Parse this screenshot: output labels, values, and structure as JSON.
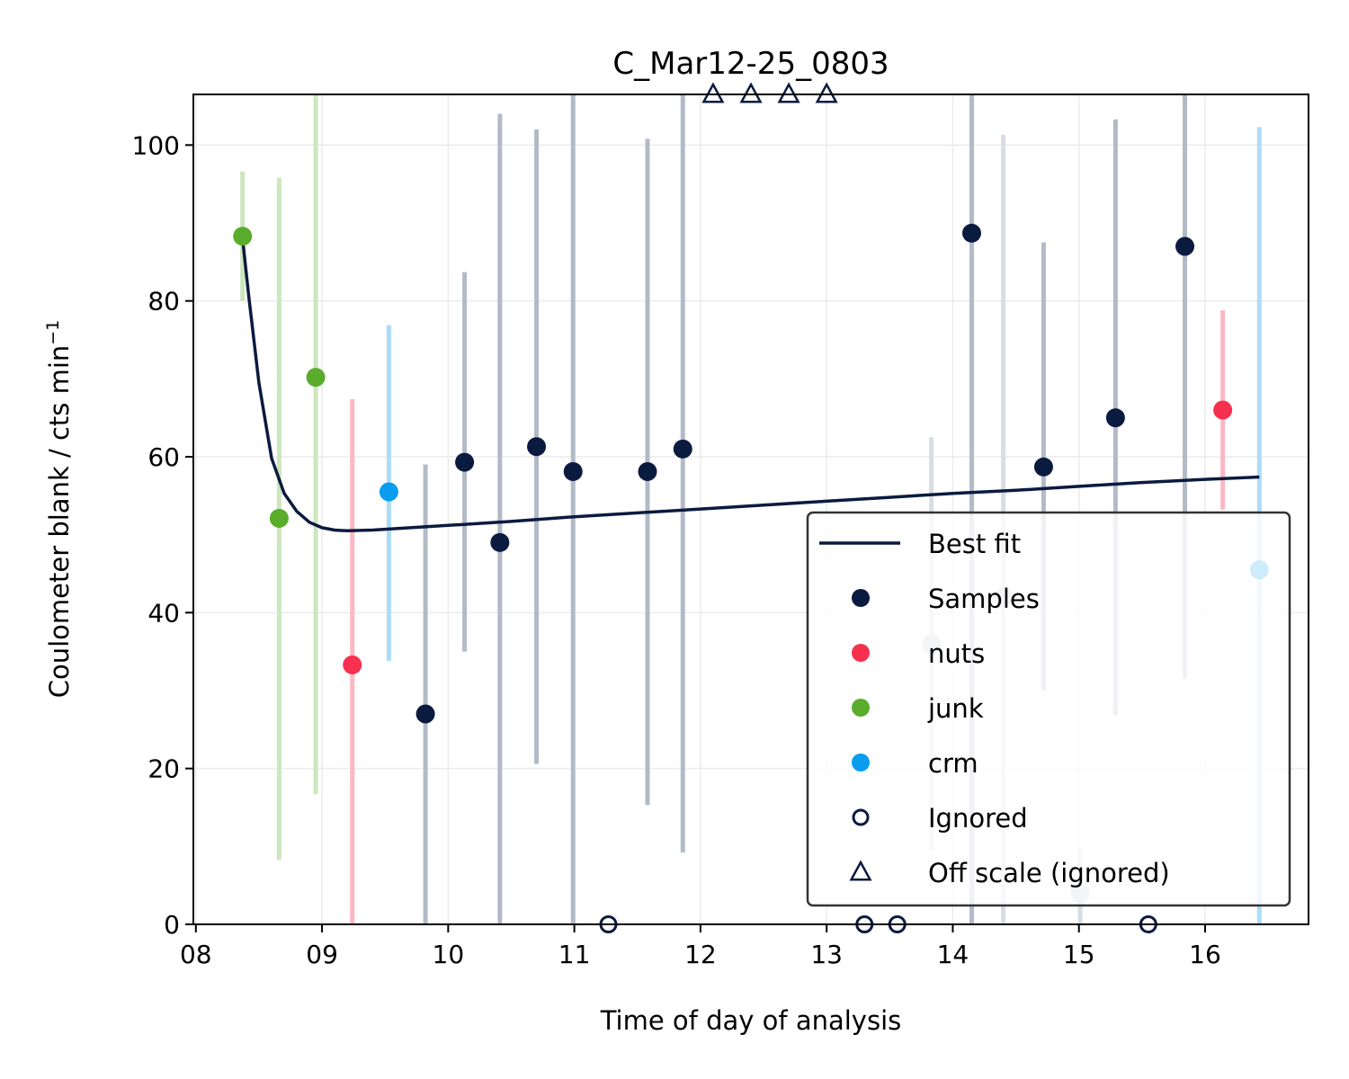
{
  "chart_data": {
    "type": "scatter",
    "title": "C_Mar12-25_0803",
    "xlabel": "Time of day of analysis",
    "ylabel": "Coulometer blank / cts min",
    "ylabel_superscript": "−1",
    "xlim": [
      7.98,
      16.82
    ],
    "ylim": [
      0,
      106.5
    ],
    "xticks": [
      8,
      9,
      10,
      11,
      12,
      13,
      14,
      15,
      16
    ],
    "xtick_labels": [
      "08",
      "09",
      "10",
      "11",
      "12",
      "13",
      "14",
      "15",
      "16"
    ],
    "yticks": [
      0,
      20,
      40,
      60,
      80,
      100
    ],
    "ytick_labels": [
      "0",
      "20",
      "40",
      "60",
      "80",
      "100"
    ],
    "grid": true,
    "legend_position": "lower-right",
    "best_fit": {
      "name": "Best fit",
      "color": "#0b1a3f",
      "x": [
        8.37,
        8.42,
        8.5,
        8.6,
        8.7,
        8.8,
        8.9,
        9.0,
        9.1,
        9.2,
        9.4,
        9.7,
        10.0,
        10.5,
        11.0,
        11.5,
        12.0,
        12.5,
        13.0,
        13.5,
        14.0,
        14.5,
        15.0,
        15.5,
        16.0,
        16.43
      ],
      "y": [
        88.0,
        80.5,
        69.5,
        59.8,
        55.3,
        53.0,
        51.6,
        50.9,
        50.6,
        50.5,
        50.6,
        50.9,
        51.2,
        51.7,
        52.3,
        52.8,
        53.3,
        53.8,
        54.3,
        54.8,
        55.3,
        55.7,
        56.2,
        56.7,
        57.1,
        57.4
      ]
    },
    "series": [
      {
        "name": "Samples",
        "color": "#0b1a3f",
        "err_color": "#b3bac7",
        "points": [
          {
            "x": 9.82,
            "y": 27.0,
            "lo": 0,
            "hi": 59.0
          },
          {
            "x": 10.13,
            "y": 59.3,
            "lo": 35.0,
            "hi": 83.7
          },
          {
            "x": 10.41,
            "y": 49.0,
            "lo": 0,
            "hi": 104.0
          },
          {
            "x": 10.7,
            "y": 61.3,
            "lo": 20.6,
            "hi": 102.0
          },
          {
            "x": 10.99,
            "y": 58.1,
            "lo": 0,
            "hi": 106.5
          },
          {
            "x": 11.58,
            "y": 58.1,
            "lo": 15.3,
            "hi": 100.8
          },
          {
            "x": 11.86,
            "y": 61.0,
            "lo": 9.2,
            "hi": 106.5
          },
          {
            "x": 14.15,
            "y": 88.7,
            "lo": 0,
            "hi": 106.5
          },
          {
            "x": 14.72,
            "y": 58.7,
            "lo": 30.0,
            "hi": 87.5
          },
          {
            "x": 15.29,
            "y": 65.0,
            "lo": 26.8,
            "hi": 103.3
          },
          {
            "x": 15.84,
            "y": 87.0,
            "lo": 31.5,
            "hi": 106.5
          }
        ]
      },
      {
        "name": "nuts",
        "color": "#f7304f",
        "err_color": "#fbb8c3",
        "points": [
          {
            "x": 9.24,
            "y": 33.3,
            "lo": 0,
            "hi": 67.4
          },
          {
            "x": 16.14,
            "y": 66.0,
            "lo": 53.2,
            "hi": 78.8
          }
        ]
      },
      {
        "name": "junk",
        "color": "#5aac2b",
        "err_color": "#cde6bd",
        "points": [
          {
            "x": 8.37,
            "y": 88.3,
            "lo": 80.0,
            "hi": 96.6
          },
          {
            "x": 8.66,
            "y": 52.1,
            "lo": 8.3,
            "hi": 95.8
          },
          {
            "x": 8.95,
            "y": 70.2,
            "lo": 16.7,
            "hi": 106.5
          }
        ]
      },
      {
        "name": "crm",
        "color": "#0a9cef",
        "err_color": "#acdcf8",
        "points": [
          {
            "x": 9.53,
            "y": 55.5,
            "lo": 33.8,
            "hi": 76.9
          },
          {
            "x": 16.43,
            "y": 45.5,
            "lo": 0,
            "hi": 102.3
          }
        ]
      },
      {
        "name": "Ignored",
        "color": "#0b1a3f",
        "marker": "open-circle",
        "points": [
          {
            "x": 11.27,
            "y": 0
          },
          {
            "x": 13.3,
            "y": 0
          },
          {
            "x": 13.56,
            "y": 0
          },
          {
            "x": 15.55,
            "y": 0
          }
        ]
      },
      {
        "name": "Off scale (ignored)",
        "color": "#0b1a3f",
        "marker": "open-triangle",
        "points": [
          {
            "x": 12.1,
            "y": 106.5
          },
          {
            "x": 12.4,
            "y": 106.5
          },
          {
            "x": 12.7,
            "y": 106.5
          },
          {
            "x": 13.0,
            "y": 106.5
          }
        ]
      },
      {
        "name": "",
        "color": "#c9ced8",
        "err_color": "#d8dce4",
        "points": [
          {
            "x": 13.83,
            "y": 36.0,
            "lo": 9.5,
            "hi": 62.5
          },
          {
            "x": 14.4,
            "y": 42.0,
            "lo": 0,
            "hi": 101.3
          },
          {
            "x": 15.01,
            "y": 4.0,
            "lo": 0,
            "hi": 9.8
          }
        ]
      }
    ]
  }
}
